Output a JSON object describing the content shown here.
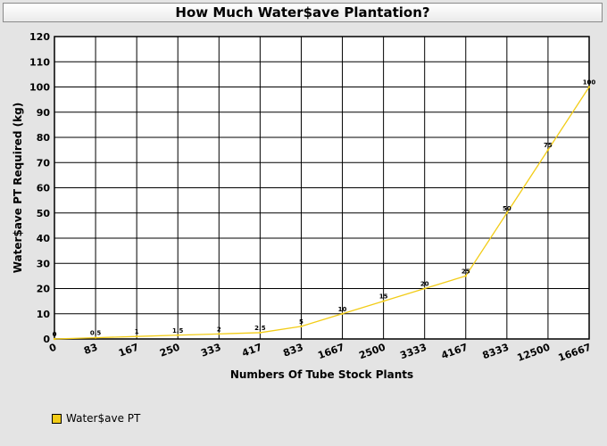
{
  "chart_data": {
    "type": "line",
    "title": "How Much Water$ave Plantation?",
    "xlabel": "Numbers Of Tube Stock Plants",
    "ylabel": "Water$ave PT Required (kg)",
    "categories": [
      "0",
      "83",
      "167",
      "250",
      "333",
      "417",
      "833",
      "1667",
      "2500",
      "3333",
      "4167",
      "8333",
      "12500",
      "16667"
    ],
    "series": [
      {
        "name": "Water$ave PT",
        "values": [
          0,
          0.5,
          1,
          1.5,
          2,
          2.5,
          5,
          10,
          15,
          20,
          25,
          50,
          75,
          100
        ],
        "labels": [
          "0",
          "0.5",
          "1",
          "1.5",
          "2",
          "2.5",
          "5",
          "10",
          "15",
          "20",
          "25",
          "50",
          "75",
          "100"
        ],
        "color": "#f2cc17"
      }
    ],
    "ylim": [
      0,
      120
    ],
    "yticks": [
      "0",
      "10",
      "20",
      "30",
      "40",
      "50",
      "60",
      "70",
      "80",
      "90",
      "100",
      "110",
      "120"
    ],
    "grid": true,
    "legend_position": "bottom-left"
  }
}
